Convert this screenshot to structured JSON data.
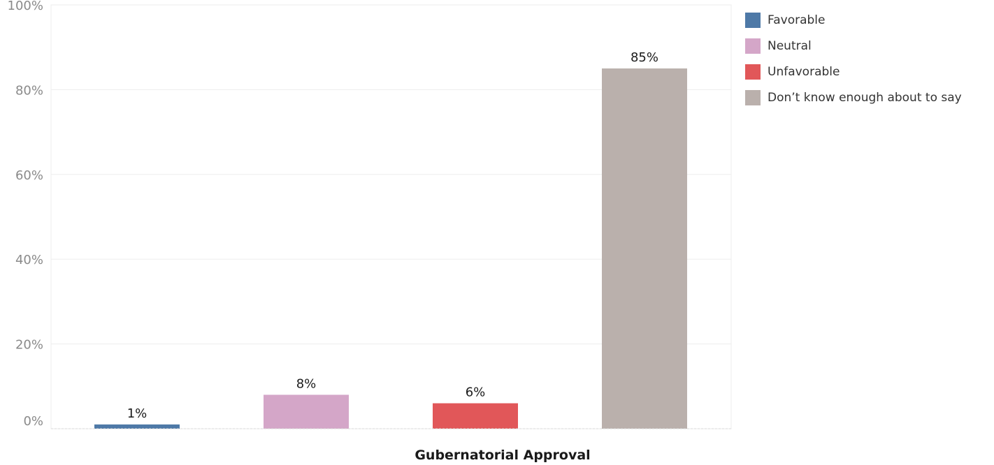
{
  "chart_data": {
    "type": "bar",
    "xlabel": "Gubernatorial Approval",
    "ylabel": "",
    "ylim": [
      0,
      100
    ],
    "y_ticks": [
      "0%",
      "20%",
      "40%",
      "60%",
      "80%",
      "100%"
    ],
    "grid": true,
    "legend_position": "right",
    "categories": [
      "Favorable",
      "Neutral",
      "Unfavorable",
      "Don’t know enough about to say"
    ],
    "values": [
      1,
      8,
      6,
      85
    ],
    "data_labels": [
      "1%",
      "8%",
      "6%",
      "85%"
    ],
    "colors": [
      "#4e79a7",
      "#d4a6c8",
      "#e15759",
      "#bab0ac"
    ]
  },
  "legend": {
    "items": [
      {
        "label": "Favorable",
        "color": "#4e79a7"
      },
      {
        "label": "Neutral",
        "color": "#d4a6c8"
      },
      {
        "label": "Unfavorable",
        "color": "#e15759"
      },
      {
        "label": "Don’t know enough about to say",
        "color": "#bab0ac"
      }
    ]
  }
}
